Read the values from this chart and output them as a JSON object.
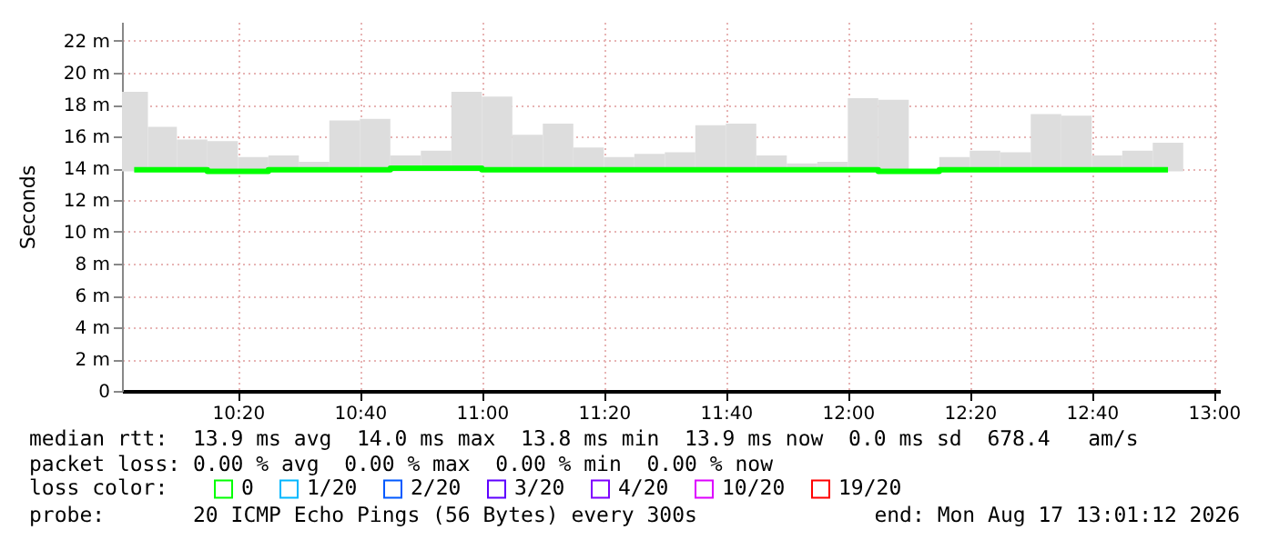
{
  "chart_data": {
    "type": "step",
    "ylabel": "Seconds",
    "legend_title": "loss color:",
    "legend": "bottom",
    "grid": true,
    "x": [
      "2026-08-17T10:03",
      "2026-08-17T10:07:30",
      "2026-08-17T10:12:30",
      "2026-08-17T10:17:30",
      "2026-08-17T10:22:30",
      "2026-08-17T10:27:30",
      "2026-08-17T10:32:30",
      "2026-08-17T10:37:30",
      "2026-08-17T10:42:30",
      "2026-08-17T10:47:30",
      "2026-08-17T10:52:30",
      "2026-08-17T10:57:30",
      "2026-08-17T11:02:30",
      "2026-08-17T11:07:30",
      "2026-08-17T11:12:30",
      "2026-08-17T11:17:30",
      "2026-08-17T11:22:30",
      "2026-08-17T11:27:30",
      "2026-08-17T11:32:30",
      "2026-08-17T11:37:30",
      "2026-08-17T11:42:30",
      "2026-08-17T11:47:30",
      "2026-08-17T11:52:30",
      "2026-08-17T11:57:30",
      "2026-08-17T12:02:30",
      "2026-08-17T12:07:30",
      "2026-08-17T12:12:30",
      "2026-08-17T12:17:30",
      "2026-08-17T12:22:30",
      "2026-08-17T12:27:30",
      "2026-08-17T12:32:30",
      "2026-08-17T12:37:30",
      "2026-08-17T12:42:30",
      "2026-08-17T12:47:30",
      "2026-08-17T12:52:30"
    ],
    "xlim": [
      "2026-08-17T10:01",
      "2026-08-17T13:01"
    ],
    "xticks": [
      {
        "value": "2026-08-17T10:20",
        "label": "10:20"
      },
      {
        "value": "2026-08-17T10:40",
        "label": "10:40"
      },
      {
        "value": "2026-08-17T11:00",
        "label": "11:00"
      },
      {
        "value": "2026-08-17T11:20",
        "label": "11:20"
      },
      {
        "value": "2026-08-17T11:40",
        "label": "11:40"
      },
      {
        "value": "2026-08-17T12:00",
        "label": "12:00"
      },
      {
        "value": "2026-08-17T12:20",
        "label": "12:20"
      },
      {
        "value": "2026-08-17T12:40",
        "label": "12:40"
      },
      {
        "value": "2026-08-17T13:00",
        "label": "13:00"
      }
    ],
    "ylim": [
      0,
      23.2
    ],
    "yticks": [
      0,
      {
        "value": 2,
        "label": "2 m"
      },
      {
        "value": 4,
        "label": "4 m"
      },
      {
        "value": 6,
        "label": "6 m"
      },
      {
        "value": 8,
        "label": "8 m"
      },
      {
        "value": 10,
        "label": "10 m"
      },
      {
        "value": 12,
        "label": "12 m"
      },
      {
        "value": 14,
        "label": "14 m"
      },
      {
        "value": 16,
        "label": "16 m"
      },
      {
        "value": 18,
        "label": "18 m"
      },
      {
        "value": 20,
        "label": "20 m"
      },
      {
        "value": 22,
        "label": "22 m"
      }
    ],
    "series": [
      {
        "type": "bar",
        "color": "#dddddd",
        "base": [
          13.8,
          13.8,
          13.8,
          13.8,
          13.8,
          13.8,
          13.8,
          13.8,
          13.8,
          13.8,
          13.8,
          13.8,
          13.8,
          13.8,
          13.8,
          13.8,
          13.8,
          13.8,
          13.8,
          13.8,
          13.8,
          13.8,
          13.8,
          13.8,
          13.8,
          13.8,
          null,
          13.8,
          13.8,
          13.8,
          13.8,
          13.8,
          13.8,
          13.8,
          13.8
        ],
        "values": [
          5.0,
          2.8,
          2.0,
          1.9,
          0.9,
          1.0,
          0.6,
          3.2,
          3.3,
          1.0,
          1.3,
          5.0,
          4.7,
          2.3,
          3.0,
          1.5,
          0.9,
          1.1,
          1.2,
          2.9,
          3.0,
          1.0,
          0.5,
          0.6,
          4.6,
          4.5,
          null,
          0.9,
          1.3,
          1.2,
          3.6,
          3.5,
          1.0,
          1.3,
          1.8
        ]
      },
      {
        "name": "0",
        "color": "#00ff00",
        "values": [
          13.9,
          13.9,
          13.9,
          13.8,
          13.8,
          13.9,
          13.9,
          13.9,
          13.9,
          14.0,
          14.0,
          14.0,
          13.9,
          13.9,
          13.9,
          13.9,
          13.9,
          13.9,
          13.9,
          13.9,
          13.9,
          13.9,
          13.9,
          13.9,
          13.9,
          13.8,
          13.8,
          13.9,
          13.9,
          13.9,
          13.9,
          13.9,
          13.9,
          13.9,
          13.9
        ]
      },
      {
        "name": "1/20",
        "color": "#00b8ff",
        "values": [
          null,
          null,
          null,
          null,
          null,
          null,
          null,
          null,
          null,
          null,
          null,
          null,
          null,
          null,
          null,
          null,
          null,
          null,
          null,
          null,
          null,
          null,
          null,
          null,
          null,
          null,
          null,
          null,
          null,
          null,
          null,
          null,
          null,
          null,
          null
        ]
      },
      {
        "name": "2/20",
        "color": "#0059ff",
        "values": [
          null,
          null,
          null,
          null,
          null,
          null,
          null,
          null,
          null,
          null,
          null,
          null,
          null,
          null,
          null,
          null,
          null,
          null,
          null,
          null,
          null,
          null,
          null,
          null,
          null,
          null,
          null,
          null,
          null,
          null,
          null,
          null,
          null,
          null,
          null
        ]
      },
      {
        "name": "3/20",
        "color": "#5e00ff",
        "values": [
          null,
          null,
          null,
          null,
          null,
          null,
          null,
          null,
          null,
          null,
          null,
          null,
          null,
          null,
          null,
          null,
          null,
          null,
          null,
          null,
          null,
          null,
          null,
          null,
          null,
          null,
          null,
          null,
          null,
          null,
          null,
          null,
          null,
          null,
          null
        ]
      },
      {
        "name": "4/20",
        "color": "#7e00ff",
        "values": [
          null,
          null,
          null,
          null,
          null,
          null,
          null,
          null,
          null,
          null,
          null,
          null,
          null,
          null,
          null,
          null,
          null,
          null,
          null,
          null,
          null,
          null,
          null,
          null,
          null,
          null,
          null,
          null,
          null,
          null,
          null,
          null,
          null,
          null,
          null
        ]
      },
      {
        "name": "10/20",
        "color": "#dd00ff",
        "values": [
          null,
          null,
          null,
          null,
          null,
          null,
          null,
          null,
          null,
          null,
          null,
          null,
          null,
          null,
          null,
          null,
          null,
          null,
          null,
          null,
          null,
          null,
          null,
          null,
          null,
          null,
          null,
          null,
          null,
          null,
          null,
          null,
          null,
          null,
          null
        ]
      },
      {
        "name": "19/20",
        "color": "#ff0000",
        "values": [
          null,
          null,
          null,
          null,
          null,
          null,
          null,
          null,
          null,
          null,
          null,
          null,
          null,
          null,
          null,
          null,
          null,
          null,
          null,
          null,
          null,
          null,
          null,
          null,
          null,
          null,
          null,
          null,
          null,
          null,
          null,
          null,
          null,
          null,
          null
        ]
      }
    ],
    "annotations": [
      "median rtt:  13.9 ms avg  14.0 ms max  13.8 ms min  13.9 ms now  0.0 ms sd  678.4   am/s",
      "packet loss: 0.00 % avg  0.00 % max  0.00 % min  0.00 % now",
      "probe:       20 ICMP Echo Pings (56 Bytes) every 300s",
      "end: Mon Aug 17 13:01:12 2026"
    ]
  }
}
